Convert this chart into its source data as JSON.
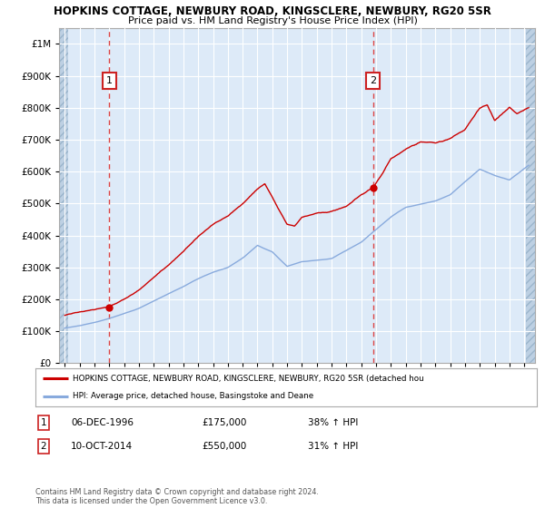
{
  "title_line1": "HOPKINS COTTAGE, NEWBURY ROAD, KINGSCLERE, NEWBURY, RG20 5SR",
  "title_line2": "Price paid vs. HM Land Registry's House Price Index (HPI)",
  "ylim": [
    0,
    1050000
  ],
  "xlim_start": 1993.6,
  "xlim_end": 2025.7,
  "bg_color": "#ddeaf8",
  "hatch_bg_color": "#bdd0e3",
  "grid_color": "#ffffff",
  "sale1_date": 1997.0,
  "sale1_price": 175000,
  "sale2_date": 2014.8,
  "sale2_price": 550000,
  "legend_line1": "HOPKINS COTTAGE, NEWBURY ROAD, KINGSCLERE, NEWBURY, RG20 5SR (detached hou",
  "legend_line2": "HPI: Average price, detached house, Basingstoke and Deane",
  "annotation1_label": "1",
  "annotation1_date": "06-DEC-1996",
  "annotation1_price": "£175,000",
  "annotation1_hpi": "38% ↑ HPI",
  "annotation2_label": "2",
  "annotation2_date": "10-OCT-2014",
  "annotation2_price": "£550,000",
  "annotation2_hpi": "31% ↑ HPI",
  "footnote": "Contains HM Land Registry data © Crown copyright and database right 2024.\nThis data is licensed under the Open Government Licence v3.0.",
  "red_line_color": "#cc0000",
  "blue_line_color": "#88aadd",
  "marker_color": "#cc0000",
  "dashed_line_color": "#dd4444",
  "box_edge_color": "#cc2222",
  "hpi_kx": [
    1994.0,
    1995.0,
    1996.0,
    1997.0,
    1998.0,
    1999.0,
    2000.0,
    2001.0,
    2002.0,
    2003.0,
    2004.0,
    2005.0,
    2006.0,
    2007.0,
    2008.0,
    2009.0,
    2010.0,
    2011.0,
    2012.0,
    2013.0,
    2014.0,
    2015.0,
    2016.0,
    2017.0,
    2018.0,
    2019.0,
    2020.0,
    2021.0,
    2022.0,
    2023.0,
    2024.0,
    2025.3
  ],
  "hpi_ky": [
    110000,
    118000,
    128000,
    140000,
    155000,
    172000,
    195000,
    218000,
    240000,
    265000,
    285000,
    300000,
    330000,
    370000,
    350000,
    305000,
    320000,
    325000,
    330000,
    355000,
    380000,
    420000,
    460000,
    490000,
    500000,
    510000,
    530000,
    570000,
    610000,
    590000,
    575000,
    620000
  ],
  "red_kx": [
    1994.0,
    1995.0,
    1996.0,
    1997.0,
    1998.0,
    1999.0,
    2000.0,
    2001.0,
    2002.0,
    2003.0,
    2004.0,
    2005.0,
    2006.0,
    2007.0,
    2007.5,
    2008.0,
    2009.0,
    2009.5,
    2010.0,
    2011.0,
    2012.0,
    2013.0,
    2014.0,
    2014.8,
    2015.5,
    2016.0,
    2017.0,
    2018.0,
    2019.0,
    2020.0,
    2021.0,
    2022.0,
    2022.5,
    2023.0,
    2023.5,
    2024.0,
    2024.5,
    2025.3
  ],
  "red_ky": [
    150000,
    158000,
    165000,
    175000,
    200000,
    230000,
    270000,
    310000,
    355000,
    400000,
    435000,
    460000,
    500000,
    545000,
    560000,
    520000,
    435000,
    430000,
    460000,
    475000,
    480000,
    495000,
    530000,
    550000,
    600000,
    640000,
    670000,
    690000,
    685000,
    700000,
    730000,
    800000,
    810000,
    760000,
    780000,
    800000,
    780000,
    800000
  ]
}
